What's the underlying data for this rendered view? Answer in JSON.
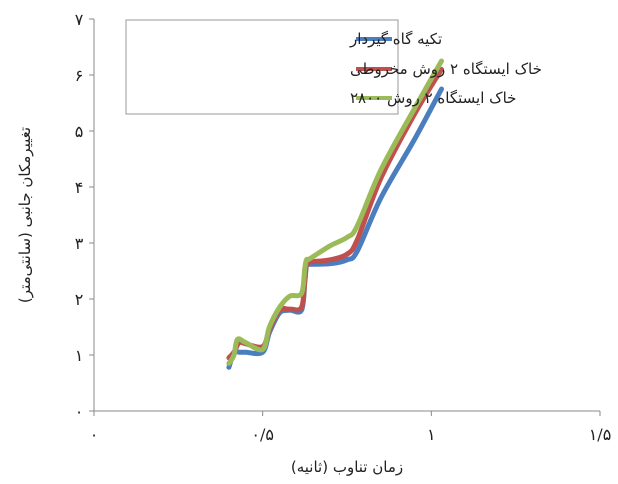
{
  "chart_data": {
    "type": "line",
    "xlabel": "زمان تناوب (ثانیه)",
    "ylabel": "تغییرمکان جانبی (سانتی‌متر)",
    "xlim": [
      0,
      1.5
    ],
    "ylim": [
      0,
      7
    ],
    "x_tick_values": [
      0,
      0.5,
      1,
      1.5
    ],
    "x_tick_labels": [
      "۰",
      "۰/۵",
      "۱",
      "۱/۵"
    ],
    "y_tick_values": [
      0,
      1,
      2,
      3,
      4,
      5,
      6,
      7
    ],
    "y_tick_labels": [
      "۰",
      "۱",
      "۲",
      "۳",
      "۴",
      "۵",
      "۶",
      "۷"
    ],
    "grid": false,
    "legend_position": "top-right",
    "series": [
      {
        "name": "تکیه گاه گیردار",
        "color": "#4a7ebf",
        "x": [
          0.4,
          0.415,
          0.43,
          0.45,
          0.5,
          0.52,
          0.55,
          0.58,
          0.615,
          0.625,
          0.63,
          0.64,
          0.7,
          0.75,
          0.78,
          0.85,
          0.95,
          1.03
        ],
        "y": [
          0.78,
          1.05,
          1.05,
          1.05,
          1.05,
          1.4,
          1.75,
          1.8,
          1.8,
          2.3,
          2.6,
          2.62,
          2.63,
          2.7,
          2.85,
          3.8,
          4.85,
          5.75
        ]
      },
      {
        "name": "خاک ایستگاه ۲ روش مخروطی",
        "color": "#c0504d",
        "x": [
          0.4,
          0.415,
          0.43,
          0.45,
          0.5,
          0.52,
          0.55,
          0.58,
          0.615,
          0.625,
          0.63,
          0.64,
          0.7,
          0.75,
          0.78,
          0.85,
          0.95,
          1.03
        ],
        "y": [
          0.95,
          1.05,
          1.22,
          1.2,
          1.15,
          1.45,
          1.8,
          1.82,
          1.85,
          2.35,
          2.62,
          2.66,
          2.7,
          2.8,
          3.05,
          4.15,
          5.3,
          6.1
        ]
      },
      {
        "name": "خاک ایستگاه ۲ روش ۲۸۰۰",
        "color": "#9bbb59",
        "x": [
          0.4,
          0.415,
          0.425,
          0.45,
          0.5,
          0.52,
          0.55,
          0.58,
          0.615,
          0.625,
          0.63,
          0.64,
          0.7,
          0.75,
          0.78,
          0.85,
          0.95,
          1.03
        ],
        "y": [
          0.85,
          1.0,
          1.28,
          1.22,
          1.1,
          1.5,
          1.85,
          2.05,
          2.1,
          2.55,
          2.7,
          2.72,
          2.95,
          3.1,
          3.3,
          4.3,
          5.4,
          6.25
        ]
      }
    ]
  }
}
